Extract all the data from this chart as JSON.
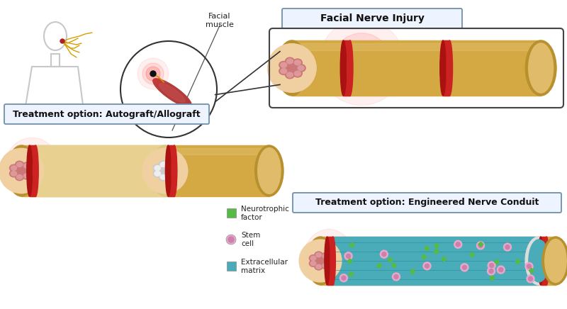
{
  "bg_color": "#ffffff",
  "nerve_color": "#D4A843",
  "nerve_dark": "#B8902E",
  "nerve_light": "#E0BC6A",
  "red_color": "#CC2222",
  "teal_color": "#4AACB8",
  "box_border": "#7090AA",
  "box_fill": "#EEF4FF",
  "title1": "Facial Nerve Injury",
  "title2": "Treatment option: Autograft/Allograft",
  "title3": "Treatment option: Engineered Nerve Conduit",
  "legend1": "Neurotrophic\nfactor",
  "legend2": "Stem\ncell",
  "legend3": "Extracellular\nmatrix",
  "label_facial": "Facial\nmuscle",
  "nerve_green": "#55BB44",
  "stem_pink": "#E8A8CC",
  "stem_dark": "#CC80AA",
  "fig_width": 8.0,
  "fig_height": 4.36,
  "inner_pink": "#CC8888",
  "inner_light": "#F0D0C0"
}
